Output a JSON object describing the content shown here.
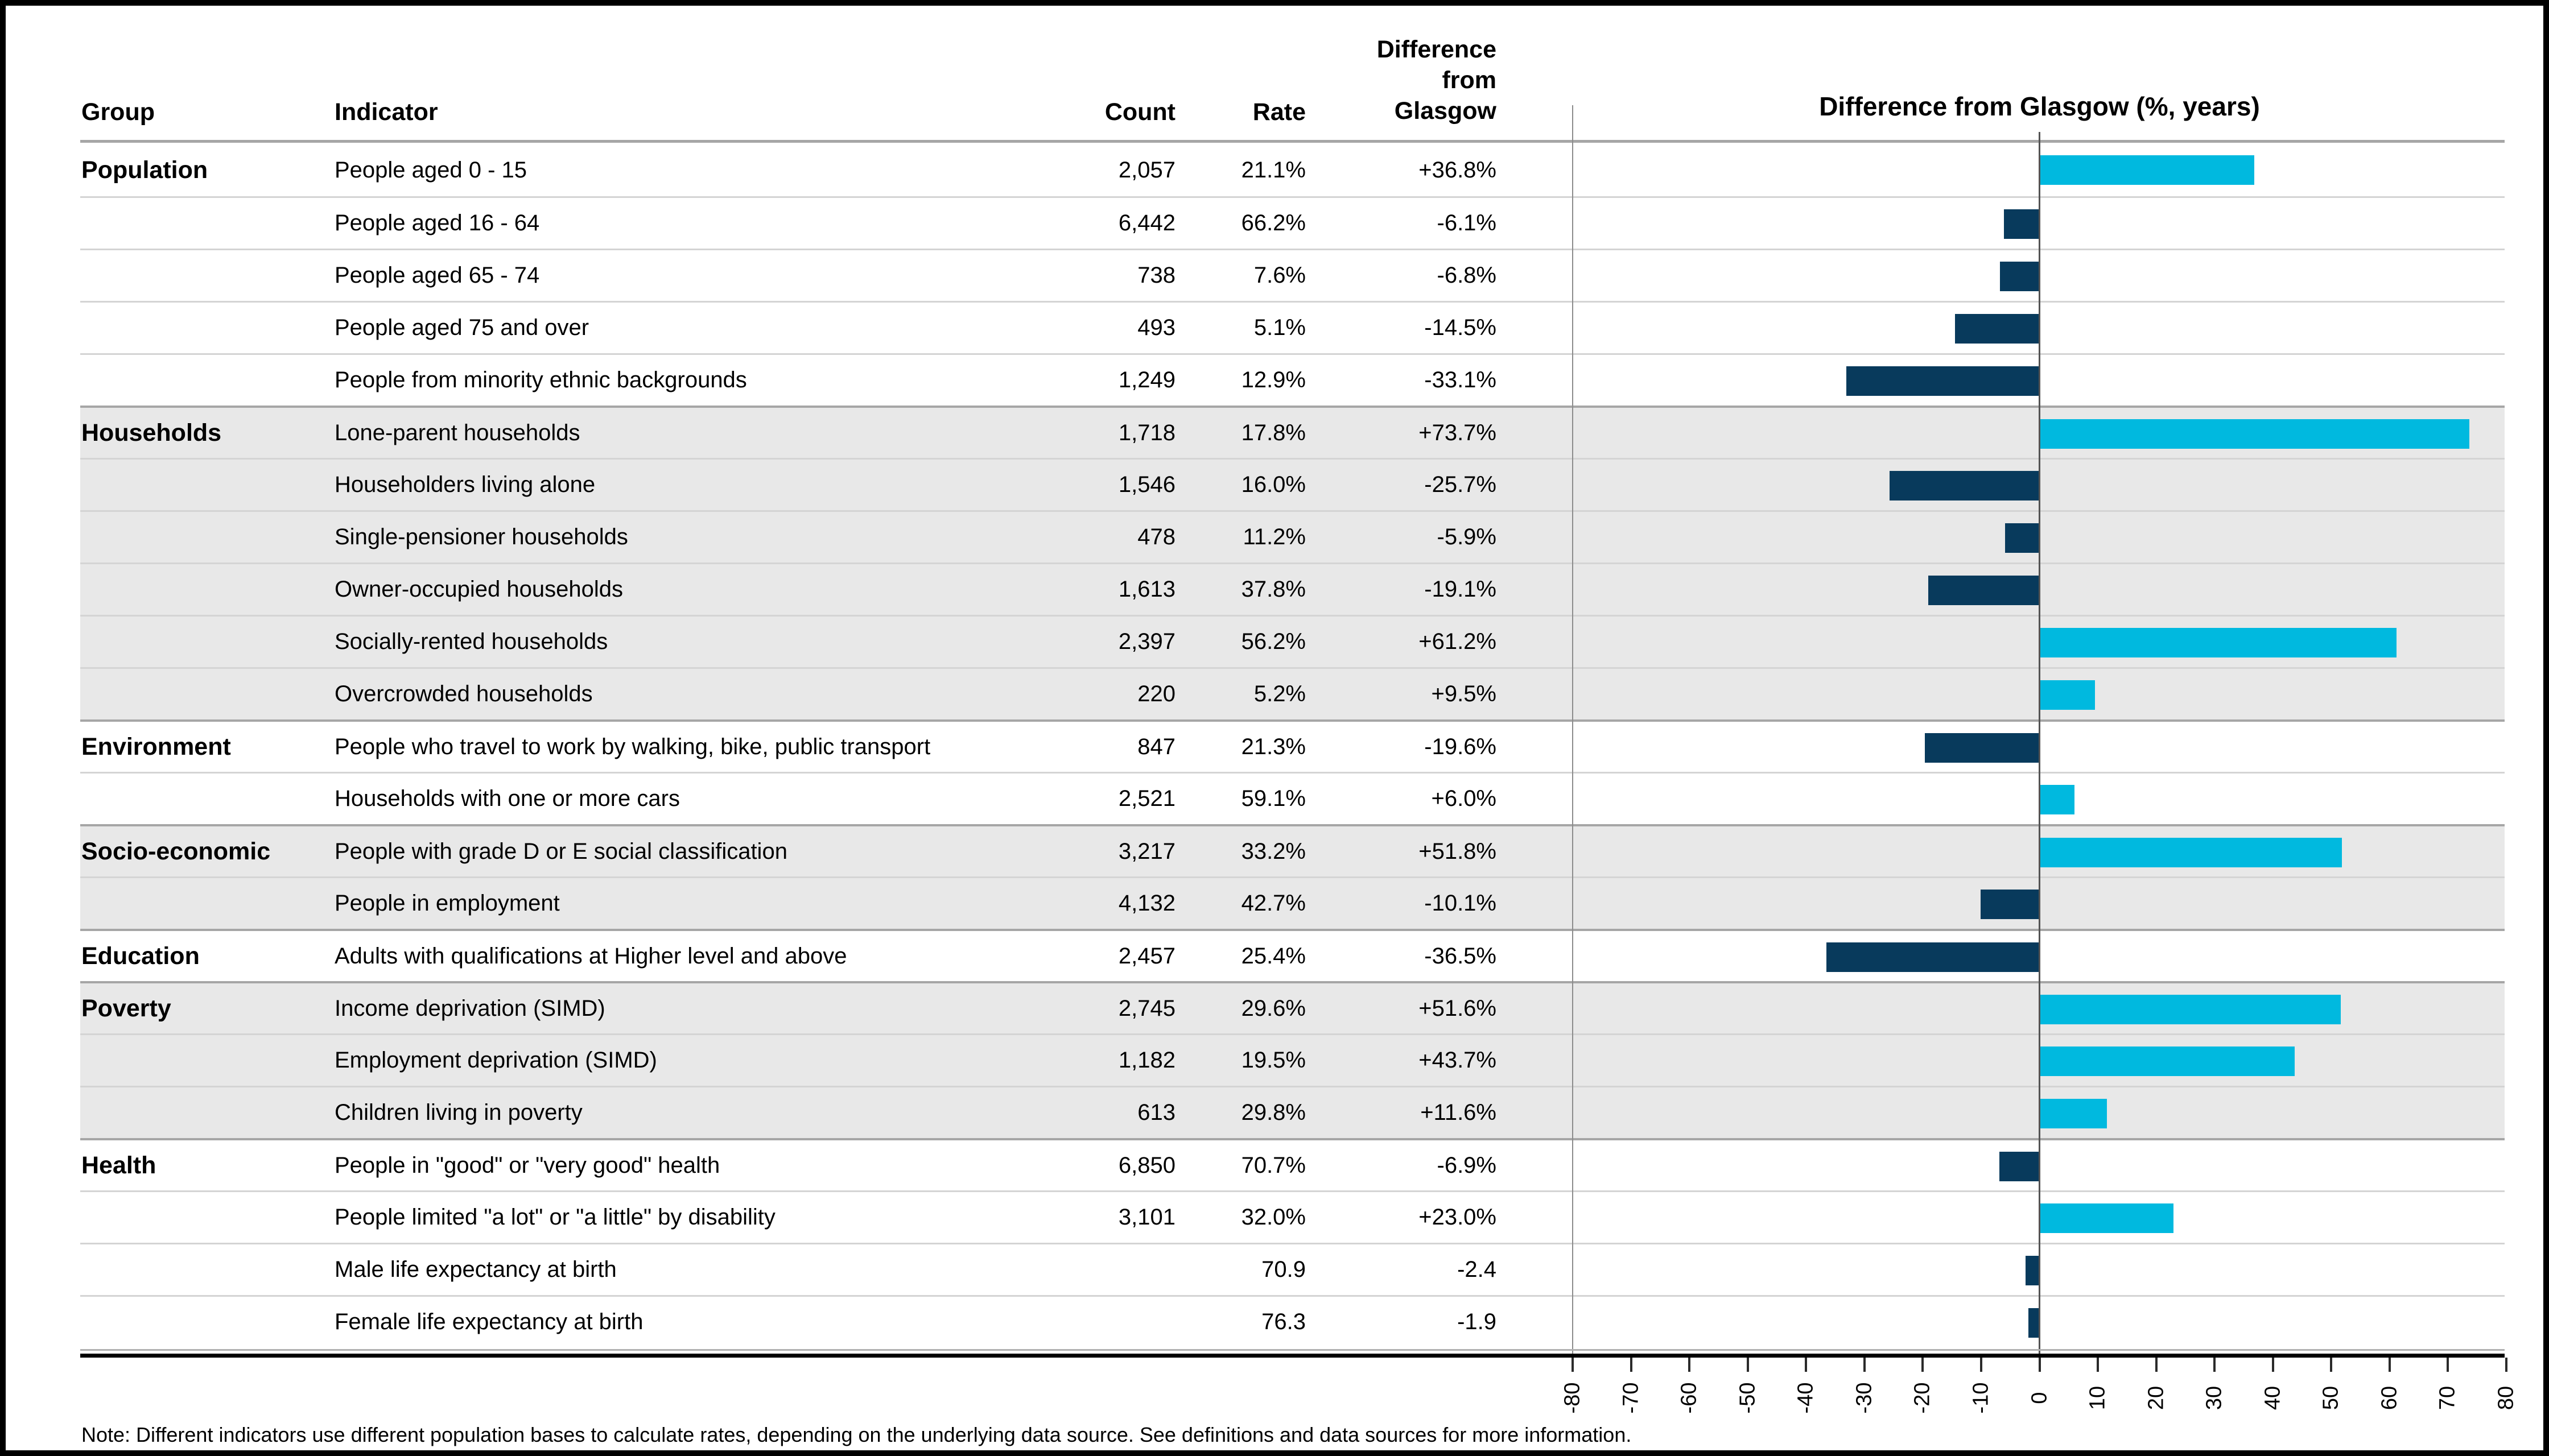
{
  "header": {
    "group": "Group",
    "indicator": "Indicator",
    "count": "Count",
    "rate": "Rate",
    "diff_lines": [
      "Difference",
      "from",
      "Glasgow"
    ]
  },
  "chart": {
    "title": "Difference from Glasgow (%, years)",
    "axis_min": -80,
    "axis_max": 80,
    "tick_step": 10,
    "tick_labels": [
      "-80",
      "-70",
      "-60",
      "-50",
      "-40",
      "-30",
      "-20",
      "-10",
      "0",
      "10",
      "20",
      "30",
      "40",
      "50",
      "60",
      "70",
      "80"
    ],
    "positive_color": "#00b9df",
    "negative_color": "#083a5c"
  },
  "note": "Note: Different indicators use different population bases to calculate rates, depending on the underlying data source. See definitions and data sources for more information.",
  "groups": [
    {
      "name": "Population",
      "shaded": false,
      "rows": [
        {
          "indicator": "People aged 0 - 15",
          "count": "2,057",
          "rate": "21.1%",
          "diff": "+36.8%",
          "value": 36.8
        },
        {
          "indicator": "People aged 16 - 64",
          "count": "6,442",
          "rate": "66.2%",
          "diff": "-6.1%",
          "value": -6.1
        },
        {
          "indicator": "People aged 65 - 74",
          "count": "738",
          "rate": "7.6%",
          "diff": "-6.8%",
          "value": -6.8
        },
        {
          "indicator": "People aged 75 and over",
          "count": "493",
          "rate": "5.1%",
          "diff": "-14.5%",
          "value": -14.5
        },
        {
          "indicator": "People from minority ethnic backgrounds",
          "count": "1,249",
          "rate": "12.9%",
          "diff": "-33.1%",
          "value": -33.1
        }
      ]
    },
    {
      "name": "Households",
      "shaded": true,
      "rows": [
        {
          "indicator": "Lone-parent households",
          "count": "1,718",
          "rate": "17.8%",
          "diff": "+73.7%",
          "value": 73.7
        },
        {
          "indicator": "Householders living alone",
          "count": "1,546",
          "rate": "16.0%",
          "diff": "-25.7%",
          "value": -25.7
        },
        {
          "indicator": "Single-pensioner households",
          "count": "478",
          "rate": "11.2%",
          "diff": "-5.9%",
          "value": -5.9
        },
        {
          "indicator": "Owner-occupied households",
          "count": "1,613",
          "rate": "37.8%",
          "diff": "-19.1%",
          "value": -19.1
        },
        {
          "indicator": "Socially-rented households",
          "count": "2,397",
          "rate": "56.2%",
          "diff": "+61.2%",
          "value": 61.2
        },
        {
          "indicator": "Overcrowded households",
          "count": "220",
          "rate": "5.2%",
          "diff": "+9.5%",
          "value": 9.5
        }
      ]
    },
    {
      "name": "Environment",
      "shaded": false,
      "rows": [
        {
          "indicator": "People who travel to work by walking, bike, public transport",
          "count": "847",
          "rate": "21.3%",
          "diff": "-19.6%",
          "value": -19.6
        },
        {
          "indicator": "Households with one or more cars",
          "count": "2,521",
          "rate": "59.1%",
          "diff": "+6.0%",
          "value": 6.0
        }
      ]
    },
    {
      "name": "Socio-economic",
      "shaded": true,
      "rows": [
        {
          "indicator": "People with grade D or E social classification",
          "count": "3,217",
          "rate": "33.2%",
          "diff": "+51.8%",
          "value": 51.8
        },
        {
          "indicator": "People in employment",
          "count": "4,132",
          "rate": "42.7%",
          "diff": "-10.1%",
          "value": -10.1
        }
      ]
    },
    {
      "name": "Education",
      "shaded": false,
      "rows": [
        {
          "indicator": "Adults with qualifications at Higher level and above",
          "count": "2,457",
          "rate": "25.4%",
          "diff": "-36.5%",
          "value": -36.5
        }
      ]
    },
    {
      "name": "Poverty",
      "shaded": true,
      "rows": [
        {
          "indicator": "Income deprivation (SIMD)",
          "count": "2,745",
          "rate": "29.6%",
          "diff": "+51.6%",
          "value": 51.6
        },
        {
          "indicator": "Employment deprivation (SIMD)",
          "count": "1,182",
          "rate": "19.5%",
          "diff": "+43.7%",
          "value": 43.7
        },
        {
          "indicator": "Children living in poverty",
          "count": "613",
          "rate": "29.8%",
          "diff": "+11.6%",
          "value": 11.6
        }
      ]
    },
    {
      "name": "Health",
      "shaded": false,
      "rows": [
        {
          "indicator": "People in \"good\" or \"very good\" health",
          "count": "6,850",
          "rate": "70.7%",
          "diff": "-6.9%",
          "value": -6.9
        },
        {
          "indicator": "People limited \"a lot\" or \"a little\" by disability",
          "count": "3,101",
          "rate": "32.0%",
          "diff": "+23.0%",
          "value": 23.0
        },
        {
          "indicator": "Male life expectancy at birth",
          "count": "",
          "rate": "70.9",
          "diff": "-2.4",
          "value": -2.4
        },
        {
          "indicator": "Female life expectancy at birth",
          "count": "",
          "rate": "76.3",
          "diff": "-1.9",
          "value": -1.9
        }
      ]
    }
  ],
  "chart_data": {
    "type": "bar",
    "orientation": "horizontal",
    "title": "Difference from Glasgow (%, years)",
    "categories": [
      "People aged 0 - 15",
      "People aged 16 - 64",
      "People aged 65 - 74",
      "People aged 75 and over",
      "People from minority ethnic backgrounds",
      "Lone-parent households",
      "Householders living alone",
      "Single-pensioner households",
      "Owner-occupied households",
      "Socially-rented households",
      "Overcrowded households",
      "People who travel to work by walking, bike, public transport",
      "Households with one or more cars",
      "People with grade D or E social classification",
      "People in employment",
      "Adults with qualifications at Higher level and above",
      "Income deprivation (SIMD)",
      "Employment deprivation (SIMD)",
      "Children living in poverty",
      "People in \"good\" or \"very good\" health",
      "People limited \"a lot\" or \"a little\" by disability",
      "Male life expectancy at birth",
      "Female life expectancy at birth"
    ],
    "values": [
      36.8,
      -6.1,
      -6.8,
      -14.5,
      -33.1,
      73.7,
      -25.7,
      -5.9,
      -19.1,
      61.2,
      9.5,
      -19.6,
      6.0,
      51.8,
      -10.1,
      -36.5,
      51.6,
      43.7,
      11.6,
      -6.9,
      23.0,
      -2.4,
      -1.9
    ],
    "xlim": [
      -80,
      80
    ],
    "tick_step": 10,
    "grid": false,
    "legend": false,
    "positive_color": "#00b9df",
    "negative_color": "#083a5c"
  }
}
